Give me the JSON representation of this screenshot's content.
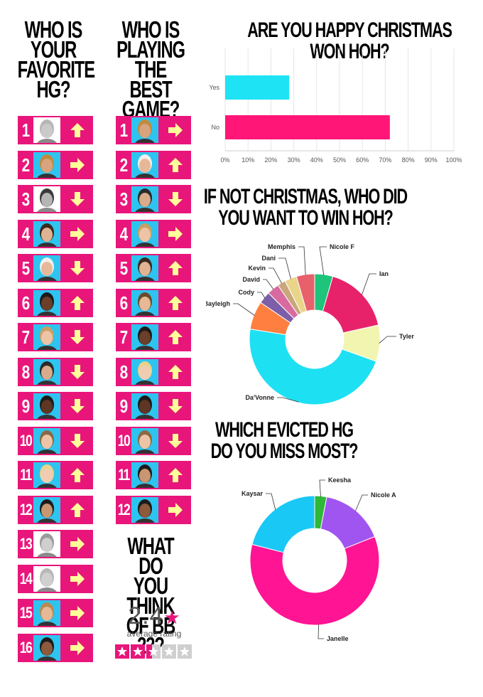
{
  "headers": {
    "favorite": "WHO IS\nYOUR\nFAVORITE\nHG?",
    "best_game": "WHO IS\nPLAYING\nTHE BEST\nGAME?",
    "bb22": "WHAT DO\nYOU THINK\nOF BB 22?"
  },
  "favorite_hg": [
    {
      "rank": "1",
      "arrow": "up",
      "photo_bg": "#ffffff",
      "gray": true,
      "skin": "#d9c8b8",
      "hair": "#c8b59a"
    },
    {
      "rank": "2",
      "arrow": "right",
      "photo_bg": "#2ec4f0",
      "gray": false,
      "skin": "#d7a47f",
      "hair": "#c28a3d"
    },
    {
      "rank": "3",
      "arrow": "down",
      "photo_bg": "#ffffff",
      "gray": true,
      "skin": "#b5b5b5",
      "hair": "#3a3a3a"
    },
    {
      "rank": "4",
      "arrow": "right",
      "photo_bg": "#2ec4f0",
      "gray": false,
      "skin": "#e0b393",
      "hair": "#3b2a1e"
    },
    {
      "rank": "5",
      "arrow": "down",
      "photo_bg": "#2ec4f0",
      "gray": false,
      "skin": "#e7b897",
      "hair": "#f0f0f0"
    },
    {
      "rank": "6",
      "arrow": "up",
      "photo_bg": "#2ec4f0",
      "gray": false,
      "skin": "#6b3f2a",
      "hair": "#1b1b1b"
    },
    {
      "rank": "7",
      "arrow": "down",
      "photo_bg": "#2ec4f0",
      "gray": false,
      "skin": "#edc4a6",
      "hair": "#c9a063"
    },
    {
      "rank": "8",
      "arrow": "down",
      "photo_bg": "#2ec4f0",
      "gray": false,
      "skin": "#d9ab8a",
      "hair": "#2a2a2a"
    },
    {
      "rank": "9",
      "arrow": "down",
      "photo_bg": "#2ec4f0",
      "gray": false,
      "skin": "#5e3623",
      "hair": "#1b1b1b"
    },
    {
      "rank": "10",
      "arrow": "down",
      "photo_bg": "#2ec4f0",
      "gray": false,
      "skin": "#edc4a6",
      "hair": "#8a6a45"
    },
    {
      "rank": "11",
      "arrow": "up",
      "photo_bg": "#2ec4f0",
      "gray": false,
      "skin": "#f0cdb2",
      "hair": "#e9d28f"
    },
    {
      "rank": "12",
      "arrow": "up",
      "photo_bg": "#2ec4f0",
      "gray": false,
      "skin": "#c99672",
      "hair": "#1b1b1b"
    },
    {
      "rank": "13",
      "arrow": "right",
      "photo_bg": "#ffffff",
      "gray": true,
      "skin": "#cfcfcf",
      "hair": "#9a9a9a"
    },
    {
      "rank": "14",
      "arrow": "right",
      "photo_bg": "#ffffff",
      "gray": true,
      "skin": "#d0d0d0",
      "hair": "#b8b8b8"
    },
    {
      "rank": "15",
      "arrow": "right",
      "photo_bg": "#2ec4f0",
      "gray": false,
      "skin": "#e6b896",
      "hair": "#b98a50"
    },
    {
      "rank": "16",
      "arrow": "right",
      "photo_bg": "#2ec4f0",
      "gray": false,
      "skin": "#8d5a3c",
      "hair": "#1b1b1b"
    }
  ],
  "best_game": [
    {
      "rank": "1",
      "arrow": "right",
      "photo_bg": "#2ec4f0",
      "gray": false,
      "skin": "#d7a47f",
      "hair": "#c28a3d"
    },
    {
      "rank": "2",
      "arrow": "up",
      "photo_bg": "#2ec4f0",
      "gray": false,
      "skin": "#e7b897",
      "hair": "#f0f0f0"
    },
    {
      "rank": "3",
      "arrow": "down",
      "photo_bg": "#2ec4f0",
      "gray": false,
      "skin": "#d9ab8a",
      "hair": "#2a2a2a"
    },
    {
      "rank": "4",
      "arrow": "right",
      "photo_bg": "#2ec4f0",
      "gray": false,
      "skin": "#edc4a6",
      "hair": "#c9a063"
    },
    {
      "rank": "5",
      "arrow": "up",
      "photo_bg": "#2ec4f0",
      "gray": false,
      "skin": "#e0b393",
      "hair": "#3b2a1e"
    },
    {
      "rank": "6",
      "arrow": "up",
      "photo_bg": "#2ec4f0",
      "gray": false,
      "skin": "#e6b896",
      "hair": "#6b4a2a"
    },
    {
      "rank": "7",
      "arrow": "up",
      "photo_bg": "#2ec4f0",
      "gray": false,
      "skin": "#6b3f2a",
      "hair": "#1b1b1b"
    },
    {
      "rank": "8",
      "arrow": "up",
      "photo_bg": "#2ec4f0",
      "gray": false,
      "skin": "#f0cdb2",
      "hair": "#e9d28f"
    },
    {
      "rank": "9",
      "arrow": "down",
      "photo_bg": "#2ec4f0",
      "gray": false,
      "skin": "#5e3623",
      "hair": "#1b1b1b"
    },
    {
      "rank": "10",
      "arrow": "down",
      "photo_bg": "#2ec4f0",
      "gray": false,
      "skin": "#edc4a6",
      "hair": "#8a6a45"
    },
    {
      "rank": "11",
      "arrow": "up",
      "photo_bg": "#2ec4f0",
      "gray": false,
      "skin": "#c99672",
      "hair": "#1b1b1b"
    },
    {
      "rank": "12",
      "arrow": "right",
      "photo_bg": "#2ec4f0",
      "gray": false,
      "skin": "#8d5a3c",
      "hair": "#1b1b1b"
    }
  ],
  "rating": {
    "value": "2.4",
    "star": "★",
    "label": "average rating",
    "score": 2.4,
    "max_stars": 5
  },
  "colors": {
    "pink": "#e8167a",
    "cyan": "#2ec4f0",
    "arrow": "#ffff99",
    "gray_bg": "#d0d0d0"
  },
  "chart_data": [
    {
      "type": "bar",
      "orientation": "horizontal",
      "title": "ARE YOU HAPPY CHRISTMAS WON HOH?",
      "categories": [
        "Yes",
        "No"
      ],
      "values": [
        28,
        72
      ],
      "colors": [
        "#1ee3f5",
        "#ff1677"
      ],
      "x_ticks": [
        "0%",
        "10%",
        "20%",
        "30%",
        "40%",
        "50%",
        "60%",
        "70%",
        "80%",
        "90%",
        "100%"
      ],
      "xlim": [
        0,
        100
      ],
      "grid": true
    },
    {
      "type": "pie",
      "donut": true,
      "title": "IF NOT CHRISTMAS, WHO DID\nYOU WANT TO WIN HOH?",
      "labels": [
        "Nicole F",
        "Ian",
        "Tyler",
        "Da'Vonne",
        "Bayleigh",
        "Cody",
        "David",
        "Kevin",
        "Dani",
        "Memphis"
      ],
      "values": [
        4.5,
        17,
        9,
        47,
        7,
        3,
        3,
        2,
        3,
        4.5
      ],
      "colors": [
        "#1dc47a",
        "#e8226a",
        "#f2f5b0",
        "#1ee0f3",
        "#ff7f40",
        "#7d5ea8",
        "#d86a9f",
        "#c9a67c",
        "#e9d58a",
        "#e8606c"
      ]
    },
    {
      "type": "pie",
      "donut": true,
      "title": "WHICH EVICTED HG\nDO YOU MISS MOST?",
      "labels": [
        "Keesha",
        "Nicole A",
        "Janelle",
        "Kaysar"
      ],
      "values": [
        3,
        16,
        60,
        21
      ],
      "colors": [
        "#2fb737",
        "#a155f0",
        "#ff1493",
        "#1ac8f5"
      ]
    }
  ]
}
